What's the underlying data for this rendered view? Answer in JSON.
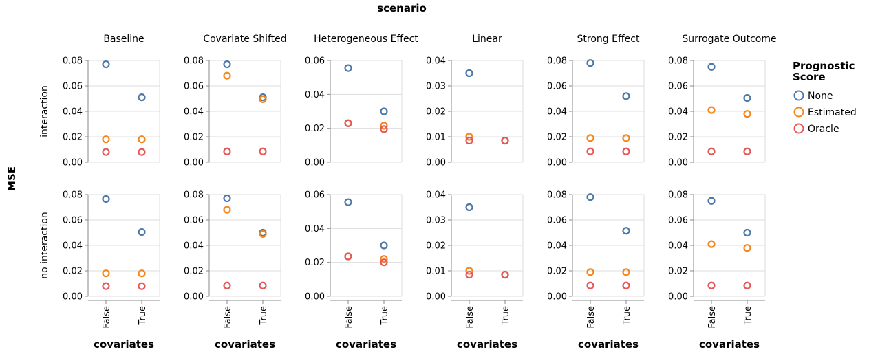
{
  "chart_data": {
    "type": "scatter",
    "title": "scenario",
    "ylabel": "MSE",
    "xlabel": "covariates",
    "columns": [
      "Baseline",
      "Covariate Shifted",
      "Heterogeneous Effect",
      "Linear",
      "Strong Effect",
      "Surrogate Outcome"
    ],
    "rows": [
      "interaction",
      "no interaction"
    ],
    "categories": [
      "False",
      "True"
    ],
    "ylim": [
      [
        0,
        0.08
      ],
      [
        0,
        0.08
      ],
      [
        0,
        0.06
      ],
      [
        0,
        0.04
      ],
      [
        0,
        0.08
      ],
      [
        0,
        0.08
      ]
    ],
    "yticks": [
      [
        "0.00",
        "0.02",
        "0.04",
        "0.06",
        "0.08"
      ],
      [
        "0.00",
        "0.02",
        "0.04",
        "0.06",
        "0.08"
      ],
      [
        "0.00",
        "0.02",
        "0.04",
        "0.06"
      ],
      [
        "0.00",
        "0.01",
        "0.02",
        "0.03",
        "0.04"
      ],
      [
        "0.00",
        "0.02",
        "0.04",
        "0.06",
        "0.08"
      ],
      [
        "0.00",
        "0.02",
        "0.04",
        "0.06",
        "0.08"
      ]
    ],
    "legend": {
      "title": "Prognostic Score",
      "title_lines": [
        "Prognostic",
        "Score"
      ],
      "placement": "right",
      "entries": [
        {
          "name": "None",
          "color": "#4c78a8"
        },
        {
          "name": "Estimated",
          "color": "#f58518"
        },
        {
          "name": "Oracle",
          "color": "#e45756"
        }
      ]
    },
    "series": [
      {
        "name": "None",
        "panels": [
          [
            [
              0.077,
              0.051
            ],
            [
              0.077,
              0.051
            ],
            [
              0.0555,
              0.03
            ],
            [
              0.035,
              0.0085
            ],
            [
              0.078,
              0.052
            ],
            [
              0.075,
              0.0505
            ]
          ],
          [
            [
              0.0765,
              0.0505
            ],
            [
              0.077,
              0.05
            ],
            [
              0.0555,
              0.03
            ],
            [
              0.035,
              0.0085
            ],
            [
              0.078,
              0.0515
            ],
            [
              0.075,
              0.05
            ]
          ]
        ]
      },
      {
        "name": "Estimated",
        "panels": [
          [
            [
              0.018,
              0.018
            ],
            [
              0.068,
              0.0495
            ],
            [
              0.023,
              0.0215
            ],
            [
              0.01,
              0.0085
            ],
            [
              0.019,
              0.019
            ],
            [
              0.041,
              0.038
            ]
          ],
          [
            [
              0.018,
              0.018
            ],
            [
              0.068,
              0.049
            ],
            [
              0.0235,
              0.022
            ],
            [
              0.01,
              0.0085
            ],
            [
              0.019,
              0.019
            ],
            [
              0.041,
              0.038
            ]
          ]
        ]
      },
      {
        "name": "Oracle",
        "panels": [
          [
            [
              0.008,
              0.008
            ],
            [
              0.0085,
              0.0085
            ],
            [
              0.023,
              0.0195
            ],
            [
              0.0085,
              0.0085
            ],
            [
              0.0085,
              0.0085
            ],
            [
              0.0085,
              0.0085
            ]
          ],
          [
            [
              0.008,
              0.008
            ],
            [
              0.0085,
              0.0085
            ],
            [
              0.0235,
              0.02
            ],
            [
              0.0085,
              0.0085
            ],
            [
              0.0085,
              0.0085
            ],
            [
              0.0085,
              0.0085
            ]
          ]
        ]
      }
    ],
    "grid": true
  }
}
